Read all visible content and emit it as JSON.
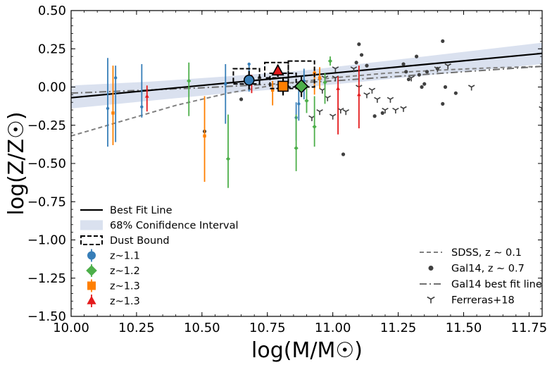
{
  "chart_data": {
    "type": "scatter",
    "xlabel": "log(M/M☉)",
    "ylabel": "log(Z/Z☉)",
    "xlim": [
      10.0,
      11.8
    ],
    "ylim": [
      -1.5,
      0.5
    ],
    "xticks": [
      10.0,
      10.25,
      10.5,
      10.75,
      11.0,
      11.25,
      11.5,
      11.75
    ],
    "xtick_labels": [
      "10.00",
      "10.25",
      "10.50",
      "10.75",
      "11.00",
      "11.25",
      "11.50",
      "11.75"
    ],
    "yticks": [
      0.5,
      0.25,
      0.0,
      -0.25,
      -0.5,
      -0.75,
      -1.0,
      -1.25,
      -1.5
    ],
    "ytick_labels": [
      "0.50",
      "0.25",
      "0.00",
      "−0.25",
      "−0.50",
      "−0.75",
      "−1.00",
      "−1.25",
      "−1.50"
    ],
    "grid": false,
    "colors": {
      "z11": "#377eb8",
      "z12": "#4daf4a",
      "z13a": "#ff7f00",
      "z13b": "#e41a1c",
      "band": "#dae1ef",
      "gal14": "#404040",
      "sdss": "#808080"
    },
    "legend_left": {
      "placement": "lower-left",
      "entries": [
        {
          "label": "Best Fit Line",
          "symbol": "solid-line",
          "color": "#000000"
        },
        {
          "label": "68% Conifidence Interval",
          "symbol": "band",
          "color": "#dae1ef"
        },
        {
          "label": "Dust Bound",
          "symbol": "dashed-box",
          "color": "#000000"
        },
        {
          "label": "z~1.1",
          "symbol": "circle",
          "color": "#377eb8"
        },
        {
          "label": "z~1.2",
          "symbol": "diamond",
          "color": "#4daf4a"
        },
        {
          "label": "z~1.3",
          "symbol": "square",
          "color": "#ff7f00"
        },
        {
          "label": "z~1.3",
          "symbol": "triangle",
          "color": "#e41a1c"
        }
      ]
    },
    "legend_right": {
      "placement": "lower-right",
      "entries": [
        {
          "label": "SDSS, z ∼ 0.1",
          "symbol": "dashed-line",
          "color": "#808080"
        },
        {
          "label": "Gal14, z ∼ 0.7",
          "symbol": "dot",
          "color": "#404040"
        },
        {
          "label": "Gal14 best fit line",
          "symbol": "dashdot-line",
          "color": "#707070"
        },
        {
          "label": "Ferreras+18",
          "symbol": "tri-down",
          "color": "#404040"
        }
      ]
    },
    "best_fit_line": {
      "x": [
        10.0,
        11.8
      ],
      "y": [
        -0.07,
        0.22
      ]
    },
    "confidence_band": {
      "x": [
        10.0,
        10.3,
        10.6,
        10.9,
        11.2,
        11.5,
        11.8
      ],
      "upper": [
        0.01,
        0.035,
        0.07,
        0.11,
        0.17,
        0.23,
        0.29
      ],
      "lower": [
        -0.14,
        -0.09,
        -0.04,
        0.0,
        0.05,
        0.1,
        0.15
      ]
    },
    "sdss_curve": {
      "x": [
        10.0,
        10.1,
        10.2,
        10.3,
        10.4,
        10.5,
        10.6,
        10.7,
        10.8,
        10.9,
        11.0,
        11.2,
        11.4,
        11.6,
        11.8
      ],
      "y": [
        -0.32,
        -0.27,
        -0.22,
        -0.17,
        -0.12,
        -0.08,
        -0.04,
        -0.01,
        0.02,
        0.04,
        0.06,
        0.09,
        0.11,
        0.125,
        0.135
      ]
    },
    "gal14_fit": {
      "x": [
        10.0,
        10.5,
        11.0,
        11.5,
        11.8
      ],
      "y": [
        -0.04,
        -0.005,
        0.04,
        0.1,
        0.135
      ]
    },
    "dust_bounds": [
      {
        "x": [
          10.62,
          10.72
        ],
        "y": [
          0.02,
          0.12
        ]
      },
      {
        "x": [
          10.74,
          10.83
        ],
        "y": [
          0.06,
          0.16
        ]
      },
      {
        "x": [
          10.76,
          10.86
        ],
        "y": [
          -0.01,
          0.09
        ]
      },
      {
        "x": [
          10.83,
          10.93
        ],
        "y": [
          0.0,
          0.17
        ]
      }
    ],
    "stacked_points": [
      {
        "group": "z~1.1",
        "marker": "circle",
        "x": 10.68,
        "y": 0.045,
        "yerr": 0.06
      },
      {
        "group": "z~1.2",
        "marker": "diamond",
        "x": 10.88,
        "y": 0.005,
        "yerr": 0.07
      },
      {
        "group": "z~1.3",
        "marker": "square",
        "x": 10.81,
        "y": 0.005,
        "yerr": 0.06
      },
      {
        "group": "z~1.3",
        "marker": "triangle",
        "x": 10.79,
        "y": 0.105,
        "yerr": 0.04
      }
    ],
    "individual_points": {
      "z11": [
        {
          "x": 10.14,
          "y": -0.14,
          "lo": -0.39,
          "hi": 0.19
        },
        {
          "x": 10.17,
          "y": 0.06,
          "lo": -0.36,
          "hi": 0.14
        },
        {
          "x": 10.27,
          "y": -0.13,
          "lo": -0.2,
          "hi": 0.15
        },
        {
          "x": 10.59,
          "y": 0.02,
          "lo": -0.24,
          "hi": 0.15
        },
        {
          "x": 10.68,
          "y": 0.15,
          "lo": -0.03,
          "hi": 0.15
        },
        {
          "x": 10.86,
          "y": -0.2,
          "lo": -0.35,
          "hi": -0.1
        },
        {
          "x": 10.87,
          "y": -0.11,
          "lo": -0.22,
          "hi": -0.01
        },
        {
          "x": 10.89,
          "y": 0.04,
          "lo": -0.08,
          "hi": 0.12
        }
      ],
      "z12": [
        {
          "x": 10.45,
          "y": 0.04,
          "lo": -0.19,
          "hi": 0.16
        },
        {
          "x": 10.6,
          "y": -0.47,
          "lo": -0.66,
          "hi": -0.18
        },
        {
          "x": 10.86,
          "y": -0.4,
          "lo": -0.55,
          "hi": -0.18
        },
        {
          "x": 10.9,
          "y": -0.09,
          "lo": -0.17,
          "hi": 0.01
        },
        {
          "x": 10.93,
          "y": -0.26,
          "lo": -0.39,
          "hi": -0.06
        },
        {
          "x": 10.97,
          "y": 0.03,
          "lo": -0.11,
          "hi": 0.09
        },
        {
          "x": 10.99,
          "y": 0.17,
          "lo": 0.14,
          "hi": 0.2
        }
      ],
      "z13a": [
        {
          "x": 10.16,
          "y": -0.17,
          "lo": -0.38,
          "hi": 0.14
        },
        {
          "x": 10.51,
          "y": -0.32,
          "lo": -0.62,
          "hi": -0.06
        },
        {
          "x": 10.77,
          "y": -0.02,
          "lo": -0.12,
          "hi": 0.04
        },
        {
          "x": 10.93,
          "y": 0.09,
          "lo": -0.05,
          "hi": 0.13
        },
        {
          "x": 10.95,
          "y": 0.06,
          "lo": -0.01,
          "hi": 0.13
        }
      ],
      "z13b": [
        {
          "x": 10.29,
          "y": -0.06,
          "lo": -0.16,
          "hi": 0.01
        },
        {
          "x": 10.69,
          "y": 0.06,
          "lo": -0.04,
          "hi": 0.08
        },
        {
          "x": 11.02,
          "y": -0.01,
          "lo": -0.31,
          "hi": 0.07
        },
        {
          "x": 11.1,
          "y": -0.05,
          "lo": -0.27,
          "hi": 0.14
        }
      ]
    },
    "gal14_points": {
      "x": [
        10.51,
        10.65,
        10.72,
        11.04,
        11.1,
        11.11,
        11.09,
        11.32,
        11.27,
        11.28,
        11.35,
        11.36,
        11.33,
        11.34,
        11.4,
        11.42,
        11.42,
        11.43,
        11.47,
        11.13,
        11.19,
        11.16,
        11.29
      ],
      "y": [
        -0.29,
        -0.08,
        0.06,
        -0.44,
        0.28,
        0.21,
        0.16,
        0.2,
        0.15,
        0.1,
        0.02,
        0.1,
        0.08,
        0.0,
        0.12,
        0.3,
        -0.11,
        0.0,
        -0.04,
        0.14,
        -0.17,
        -0.19,
        0.05
      ]
    },
    "ferreras_points": {
      "x": [
        10.92,
        10.95,
        10.96,
        10.98,
        11.0,
        11.01,
        11.03,
        11.05,
        11.08,
        11.1,
        11.13,
        11.15,
        11.17,
        11.2,
        11.22,
        11.24,
        11.27,
        11.3,
        11.4,
        11.44,
        11.53,
        11.8,
        10.97,
        11.01
      ],
      "y": [
        -0.2,
        -0.16,
        -0.02,
        -0.07,
        -0.19,
        0.06,
        -0.15,
        -0.16,
        0.12,
        0.0,
        -0.05,
        -0.02,
        -0.08,
        -0.15,
        -0.08,
        -0.15,
        -0.14,
        0.06,
        0.12,
        0.14,
        0.0,
        -0.14,
        0.06,
        0.12
      ]
    }
  }
}
